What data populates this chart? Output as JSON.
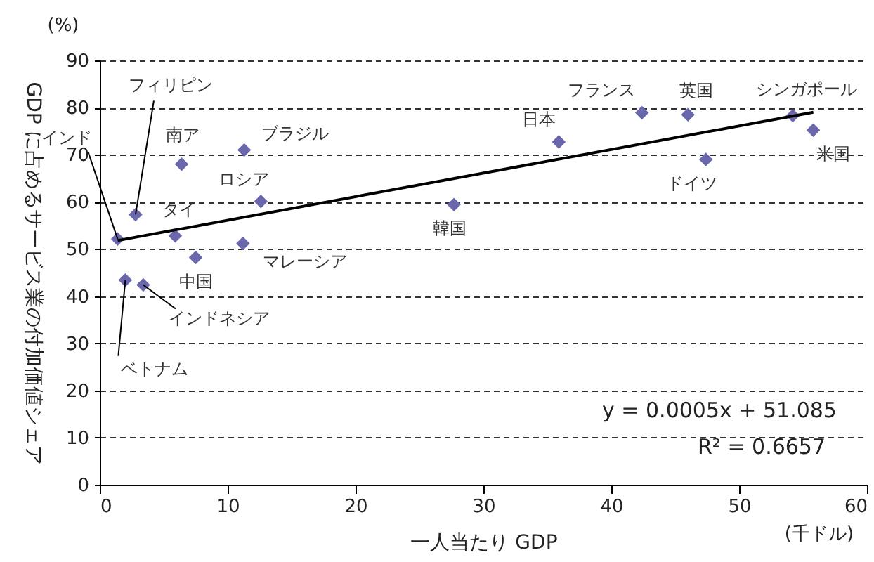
{
  "chart_data": {
    "type": "scatter",
    "xlabel": "一人当たり GDP",
    "ylabel": "GDP に占めるサービス業の付加価値シェア",
    "x": [
      1.4,
      2.8,
      6.4,
      11.3,
      12.6,
      5.9,
      7.5,
      11.2,
      2.0,
      3.4,
      27.7,
      35.9,
      42.4,
      46.0,
      47.4,
      54.2,
      55.8
    ],
    "series": [
      {
        "type": "scatter",
        "color": "#6b67ad",
        "values": [
          52.1,
          57.3,
          68.0,
          71.0,
          60.1,
          52.8,
          48.2,
          51.2,
          43.4,
          42.4,
          59.4,
          72.7,
          78.9,
          78.5,
          69.0,
          78.3,
          75.2
        ]
      },
      {
        "type": "line",
        "marker": "none",
        "color": "#000000",
        "x": [
          1.4,
          55.8
        ],
        "values": [
          51.8,
          79.0
        ]
      }
    ],
    "xlim": [
      0,
      60
    ],
    "xticks": [
      0,
      10,
      20,
      30,
      40,
      50,
      60
    ],
    "ylim": [
      0,
      90
    ],
    "yticks": [
      0,
      10,
      20,
      30,
      40,
      50,
      60,
      70,
      80,
      90
    ],
    "grid": "y",
    "marker": "diamond",
    "annotations": [
      {
        "text": "インド",
        "x": 1.4,
        "y": 52.1
      },
      {
        "text": "フィリピン",
        "x": 2.8,
        "y": 57.3
      },
      {
        "text": "南ア",
        "x": 6.4,
        "y": 68.0
      },
      {
        "text": "ブラジル",
        "x": 11.3,
        "y": 71.0
      },
      {
        "text": "ロシア",
        "x": 12.6,
        "y": 60.1
      },
      {
        "text": "タイ",
        "x": 5.9,
        "y": 52.8
      },
      {
        "text": "中国",
        "x": 7.5,
        "y": 48.2
      },
      {
        "text": "マレーシア",
        "x": 11.2,
        "y": 51.2
      },
      {
        "text": "ベトナム",
        "x": 2.0,
        "y": 43.4
      },
      {
        "text": "インドネシア",
        "x": 3.4,
        "y": 42.4
      },
      {
        "text": "韓国",
        "x": 27.7,
        "y": 59.4
      },
      {
        "text": "日本",
        "x": 35.9,
        "y": 72.7
      },
      {
        "text": "フランス",
        "x": 42.4,
        "y": 78.9
      },
      {
        "text": "英国",
        "x": 46.0,
        "y": 78.5
      },
      {
        "text": "ドイツ",
        "x": 47.4,
        "y": 69.0
      },
      {
        "text": "シンガポール",
        "x": 54.2,
        "y": 78.3
      },
      {
        "text": "米国",
        "x": 55.8,
        "y": 75.2
      },
      "(%)",
      "(千ドル)",
      "y = 0.0005x + 51.085",
      "R² = 0.6657"
    ]
  }
}
